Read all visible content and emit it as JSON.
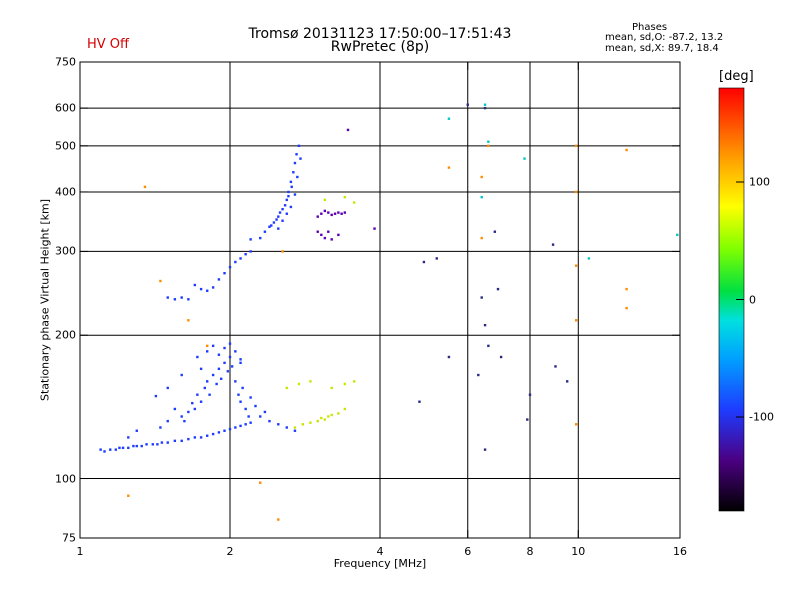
{
  "header": {
    "title_line1": "Tromsø 20131123 17:50:00–17:51:43",
    "title_line2": "RwPretec (8p)",
    "status": "HV Off",
    "status_color": "#d40000",
    "phases_title": "Phases",
    "phases_o": "mean, sd,O: -87.2, 13.2",
    "phases_x": "mean, sd,X:  89.7, 18.4"
  },
  "chart_data": {
    "type": "scatter",
    "xlabel": "Frequency [MHz]",
    "ylabel": "Stationary phase Virtual Height [km]",
    "x_scale": "log",
    "y_scale": "log",
    "xlim": [
      1,
      16
    ],
    "ylim": [
      75,
      750
    ],
    "x_ticks": [
      1,
      2,
      4,
      6,
      8,
      10,
      16
    ],
    "y_ticks": [
      75,
      100,
      200,
      300,
      400,
      500,
      600,
      750
    ],
    "x_gridlines": [
      2,
      4,
      6,
      8,
      10
    ],
    "y_gridlines": [
      100,
      200,
      300,
      400,
      500,
      600
    ],
    "grid": true,
    "colorbar": {
      "label": "[deg]",
      "min": -180,
      "max": 180,
      "ticks": [
        100,
        0,
        -100
      ],
      "tick_labels": [
        "100",
        "0",
        "-100"
      ]
    },
    "series": [
      {
        "points": [
          [
            1.1,
            115
          ],
          [
            1.12,
            114
          ],
          [
            1.15,
            115
          ],
          [
            1.18,
            115
          ],
          [
            1.2,
            116
          ],
          [
            1.22,
            116
          ],
          [
            1.25,
            116
          ],
          [
            1.28,
            117
          ],
          [
            1.3,
            117
          ],
          [
            1.33,
            117
          ],
          [
            1.36,
            118
          ],
          [
            1.4,
            118
          ],
          [
            1.43,
            118
          ],
          [
            1.46,
            119
          ],
          [
            1.5,
            119
          ],
          [
            1.55,
            120
          ],
          [
            1.6,
            120
          ],
          [
            1.65,
            121
          ],
          [
            1.7,
            122
          ],
          [
            1.75,
            122
          ],
          [
            1.8,
            123
          ],
          [
            1.85,
            124
          ],
          [
            1.9,
            125
          ],
          [
            1.95,
            126
          ],
          [
            2.0,
            127
          ],
          [
            2.05,
            128
          ],
          [
            2.1,
            129
          ],
          [
            2.15,
            130
          ],
          [
            2.2,
            131
          ],
          [
            1.25,
            122
          ],
          [
            1.3,
            126
          ],
          [
            1.45,
            128
          ],
          [
            1.5,
            132
          ],
          [
            1.55,
            140
          ],
          [
            1.6,
            135
          ],
          [
            1.62,
            132
          ],
          [
            1.65,
            138
          ],
          [
            1.68,
            144
          ],
          [
            1.7,
            140
          ],
          [
            1.72,
            150
          ],
          [
            1.75,
            145
          ],
          [
            1.78,
            155
          ],
          [
            1.8,
            160
          ],
          [
            1.82,
            150
          ],
          [
            1.85,
            165
          ],
          [
            1.88,
            158
          ],
          [
            1.9,
            170
          ],
          [
            1.92,
            162
          ],
          [
            1.95,
            175
          ],
          [
            1.98,
            168
          ],
          [
            2.0,
            180
          ],
          [
            2.02,
            172
          ],
          [
            2.05,
            160
          ],
          [
            2.08,
            150
          ],
          [
            2.1,
            145
          ],
          [
            2.12,
            155
          ],
          [
            2.15,
            140
          ],
          [
            2.18,
            135
          ],
          [
            2.2,
            148
          ],
          [
            1.72,
            180
          ],
          [
            1.75,
            170
          ],
          [
            1.8,
            185
          ],
          [
            1.85,
            190
          ],
          [
            1.9,
            182
          ],
          [
            1.95,
            188
          ],
          [
            2.0,
            192
          ],
          [
            2.05,
            185
          ],
          [
            2.1,
            178
          ],
          [
            1.42,
            149
          ],
          [
            1.5,
            155
          ],
          [
            1.6,
            165
          ],
          [
            2.1,
            175
          ],
          [
            2.25,
            142
          ],
          [
            2.3,
            135
          ],
          [
            2.35,
            138
          ],
          [
            2.4,
            132
          ],
          [
            2.5,
            130
          ],
          [
            2.6,
            128
          ],
          [
            2.7,
            126
          ],
          [
            1.5,
            240
          ],
          [
            1.55,
            238
          ],
          [
            1.6,
            240
          ],
          [
            1.65,
            238
          ],
          [
            1.7,
            255
          ],
          [
            1.75,
            250
          ],
          [
            1.8,
            248
          ],
          [
            1.85,
            252
          ],
          [
            1.9,
            262
          ],
          [
            1.95,
            270
          ],
          [
            2.0,
            278
          ],
          [
            2.05,
            285
          ],
          [
            2.1,
            290
          ],
          [
            2.15,
            296
          ],
          [
            2.2,
            300
          ],
          [
            2.3,
            320
          ],
          [
            2.35,
            330
          ],
          [
            2.4,
            338
          ],
          [
            2.45,
            345
          ],
          [
            2.5,
            355
          ],
          [
            2.55,
            368
          ],
          [
            2.6,
            385
          ],
          [
            2.62,
            400
          ],
          [
            2.65,
            420
          ],
          [
            2.68,
            440
          ],
          [
            2.7,
            460
          ],
          [
            2.72,
            480
          ],
          [
            2.75,
            500
          ],
          [
            2.42,
            340
          ],
          [
            2.48,
            350
          ],
          [
            2.52,
            362
          ],
          [
            2.58,
            375
          ],
          [
            2.62,
            392
          ],
          [
            2.66,
            410
          ],
          [
            2.2,
            318
          ],
          [
            2.5,
            335
          ],
          [
            2.55,
            348
          ],
          [
            2.6,
            360
          ],
          [
            2.65,
            372
          ],
          [
            2.7,
            395
          ],
          [
            2.73,
            430
          ],
          [
            2.77,
            470
          ]
        ],
        "color": "#1e3cff"
      },
      {
        "points": [
          [
            3.0,
            355
          ],
          [
            3.05,
            360
          ],
          [
            3.1,
            365
          ],
          [
            3.15,
            362
          ],
          [
            3.2,
            358
          ],
          [
            3.25,
            360
          ],
          [
            3.3,
            362
          ],
          [
            3.35,
            360
          ],
          [
            3.4,
            362
          ],
          [
            3.0,
            330
          ],
          [
            3.05,
            325
          ],
          [
            3.1,
            320
          ],
          [
            3.15,
            330
          ],
          [
            3.2,
            318
          ],
          [
            3.3,
            325
          ],
          [
            3.45,
            540
          ],
          [
            3.9,
            335
          ]
        ],
        "color": "#5a00b4"
      },
      {
        "points": [
          [
            2.7,
            128
          ],
          [
            2.8,
            130
          ],
          [
            2.9,
            131
          ],
          [
            3.0,
            132
          ],
          [
            3.05,
            134
          ],
          [
            3.1,
            133
          ],
          [
            3.15,
            135
          ],
          [
            3.2,
            136
          ],
          [
            3.3,
            137
          ],
          [
            3.4,
            140
          ],
          [
            2.6,
            155
          ],
          [
            2.75,
            158
          ],
          [
            2.9,
            160
          ],
          [
            3.2,
            155
          ],
          [
            3.4,
            158
          ],
          [
            3.55,
            160
          ],
          [
            3.1,
            385
          ],
          [
            3.4,
            390
          ],
          [
            3.55,
            380
          ]
        ],
        "color": "#c8e600"
      },
      {
        "points": [
          [
            1.35,
            410
          ],
          [
            1.45,
            260
          ],
          [
            1.25,
            92
          ],
          [
            1.65,
            215
          ],
          [
            1.8,
            190
          ],
          [
            2.3,
            98
          ],
          [
            2.5,
            82
          ],
          [
            2.55,
            300
          ],
          [
            5.5,
            450
          ],
          [
            6.4,
            430
          ],
          [
            6.6,
            500
          ],
          [
            9.9,
            400
          ],
          [
            9.9,
            500
          ],
          [
            12.5,
            490
          ],
          [
            12.5,
            250
          ],
          [
            12.5,
            228
          ],
          [
            9.9,
            280
          ],
          [
            9.9,
            215
          ],
          [
            9.9,
            130
          ],
          [
            6.4,
            320
          ]
        ],
        "color": "#ff8c00"
      },
      {
        "points": [
          [
            6.0,
            610
          ],
          [
            6.5,
            600
          ],
          [
            6.8,
            330
          ],
          [
            6.9,
            250
          ],
          [
            6.5,
            210
          ],
          [
            6.6,
            190
          ],
          [
            7.0,
            180
          ],
          [
            8.9,
            310
          ],
          [
            9.0,
            172
          ],
          [
            9.5,
            160
          ],
          [
            8.0,
            150
          ],
          [
            7.9,
            133
          ],
          [
            6.5,
            115
          ],
          [
            4.8,
            145
          ],
          [
            4.9,
            285
          ],
          [
            5.2,
            290
          ],
          [
            5.5,
            180
          ],
          [
            6.4,
            240
          ],
          [
            6.3,
            165
          ]
        ],
        "color": "#2a2a80"
      },
      {
        "points": [
          [
            5.5,
            570
          ],
          [
            6.5,
            610
          ],
          [
            7.8,
            470
          ],
          [
            10.5,
            290
          ],
          [
            15.8,
            325
          ],
          [
            6.6,
            510
          ],
          [
            6.4,
            390
          ]
        ],
        "color": "#00c8c8"
      }
    ]
  }
}
